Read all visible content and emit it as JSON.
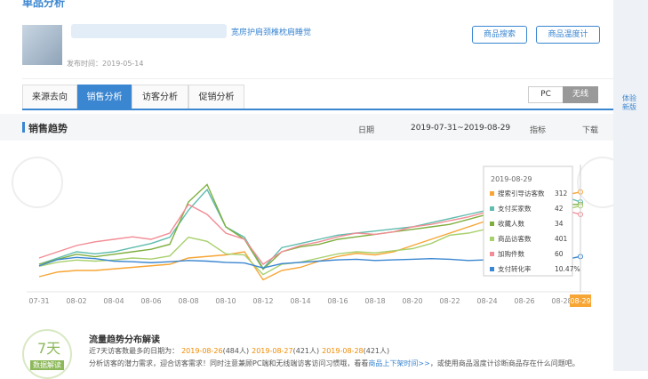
{
  "header": {
    "title": "单品分析",
    "product_title": "宽房护肩颈椎枕肩睡觉",
    "publish_date": "发布时间：2019-05-14",
    "buttons": [
      "商品搜索",
      "商品温度计"
    ]
  },
  "tabs": [
    "来源去向",
    "销售分析",
    "访客分析",
    "促销分析"
  ],
  "device_toggle": [
    "PC",
    "无线"
  ],
  "side_link": "体验新版",
  "section": {
    "title": "销售趋势",
    "date_label": "日期",
    "date_range": "2019-07-31~2019-08-29",
    "metric_label": "指标",
    "download": "下载"
  },
  "chart_data": {
    "type": "line",
    "tooltip_date": "2019-08-29",
    "x": [
      "07-31",
      null,
      "08-02",
      null,
      "08-04",
      null,
      "08-06",
      null,
      "08-08",
      null,
      "08-10",
      null,
      "08-12",
      null,
      "08-14",
      null,
      "08-16",
      null,
      "08-18",
      null,
      "08-20",
      null,
      "08-22",
      null,
      "08-24",
      null,
      "08-26",
      null,
      "08-28",
      "08-29"
    ],
    "series": [
      {
        "name": "搜索引导访客数",
        "color": "#f7a535",
        "ylim": [
          0,
          400
        ],
        "values": [
          40,
          55,
          60,
          60,
          65,
          70,
          75,
          80,
          100,
          105,
          110,
          120,
          30,
          60,
          70,
          90,
          105,
          115,
          110,
          120,
          140,
          160,
          180,
          200,
          220,
          250,
          260,
          280,
          300,
          312
        ]
      },
      {
        "name": "支付买家数",
        "color": "#5fbcae",
        "ylim": [
          0,
          60
        ],
        "values": [
          12,
          15,
          18,
          17,
          18,
          20,
          22,
          25,
          38,
          48,
          30,
          25,
          10,
          20,
          22,
          24,
          26,
          27,
          28,
          29,
          30,
          32,
          34,
          36,
          38,
          40,
          42,
          44,
          45,
          42
        ]
      },
      {
        "name": "收藏人数",
        "color": "#7fae3e",
        "ylim": [
          0,
          50
        ],
        "values": [
          10,
          12,
          14,
          13,
          14,
          15,
          16,
          18,
          35,
          42,
          25,
          20,
          8,
          15,
          17,
          18,
          20,
          21,
          22,
          23,
          24,
          25,
          26,
          28,
          30,
          31,
          32,
          33,
          34,
          34
        ]
      },
      {
        "name": "商品访客数",
        "color": "#a8d06d",
        "ylim": [
          0,
          600
        ],
        "values": [
          110,
          130,
          140,
          135,
          140,
          150,
          145,
          160,
          250,
          230,
          170,
          165,
          70,
          120,
          130,
          150,
          170,
          180,
          175,
          185,
          195,
          220,
          260,
          270,
          290,
          300,
          330,
          350,
          380,
          401
        ]
      },
      {
        "name": "加购件数",
        "color": "#f28b94",
        "ylim": [
          0,
          100
        ],
        "values": [
          25,
          30,
          35,
          38,
          40,
          42,
          40,
          45,
          68,
          60,
          45,
          40,
          20,
          30,
          35,
          38,
          42,
          45,
          44,
          46,
          50,
          52,
          55,
          58,
          62,
          64,
          66,
          68,
          64,
          60
        ]
      },
      {
        "name": "支付转化率",
        "color": "#3a86d1",
        "ylim": [
          0,
          40
        ],
        "values": [
          7.5,
          9.5,
          10.2,
          9.8,
          9,
          8.8,
          8.5,
          8.8,
          9.2,
          9,
          8.6,
          8.4,
          6.8,
          8.2,
          8.6,
          9,
          9.4,
          9.6,
          9.2,
          9.4,
          9.6,
          9.8,
          9.6,
          9.2,
          9.4,
          9.3,
          9.4,
          9.5,
          9.3,
          10.47
        ],
        "value_labels": [
          null,
          null,
          null,
          null,
          null,
          null,
          null,
          null,
          null,
          null,
          null,
          null,
          null,
          null,
          null,
          null,
          null,
          null,
          null,
          null,
          null,
          null,
          null,
          null,
          null,
          null,
          null,
          null,
          null,
          "10.47%"
        ]
      }
    ]
  },
  "interpretation": {
    "badge_number": "7天",
    "badge_text": "数据解读",
    "title": "流量趋势分布解读",
    "intro": "近7天访客数最多的日期为：",
    "top_days": [
      {
        "date": "2019-08-26",
        "count": "(484人)"
      },
      {
        "date": "2019-08-27",
        "count": "(421人)"
      },
      {
        "date": "2019-08-28",
        "count": "(421人)"
      }
    ],
    "advice": "分析访客的潜力需求，迎合访客需求！同时注意兼顾PC端和无线端访客访问习惯哦，看看",
    "advice_link": "商品上下架时间>>",
    "advice_end": "，或使用商品温度计诊断商品存在什么问题吧。"
  }
}
